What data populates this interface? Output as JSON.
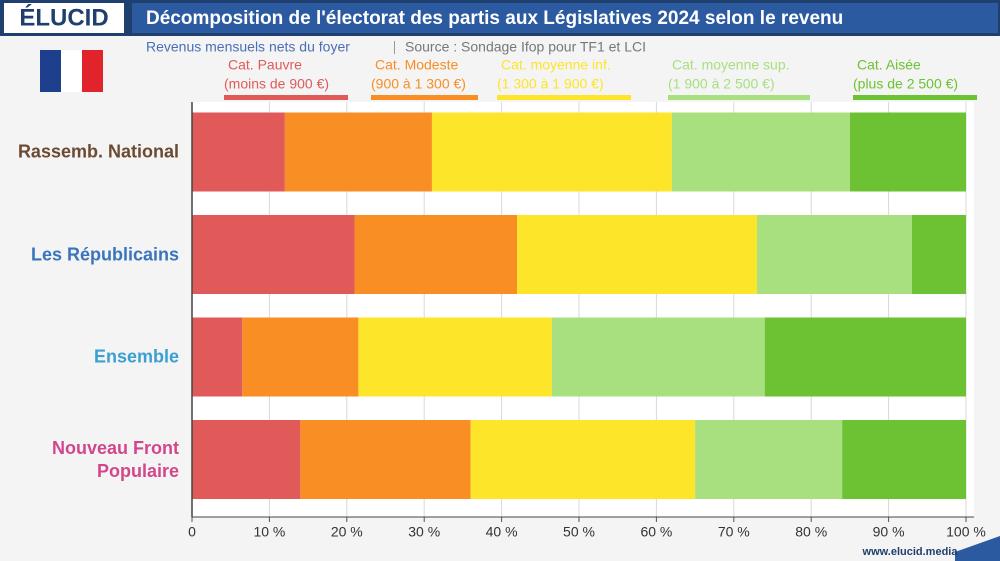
{
  "brand": "ÉLUCID",
  "footer": "www.elucid.media",
  "chart_data": {
    "type": "stacked-bar-horizontal",
    "title": "Décomposition de l'électorat des partis aux Législatives 2024 selon le revenu",
    "subtitle": "Revenus mensuels nets du foyer",
    "source": "Source : Sondage Ifop pour TF1 et LCI",
    "categories": [
      "Rassemb. National",
      "Les Républicains",
      "Ensemble",
      "Nouveau Front Populaire"
    ],
    "category_colors": [
      "#6b4a32",
      "#3a74bd",
      "#3b9fd2",
      "#d2478c"
    ],
    "series": [
      {
        "name": "Cat. Pauvre",
        "description": "(moins de 900 €)",
        "color": "#e05a5a",
        "values": [
          12,
          21,
          6.5,
          14
        ]
      },
      {
        "name": "Cat. Modeste",
        "description": "(900 à 1 300 €)",
        "color": "#f98e24",
        "values": [
          19,
          21,
          15,
          22
        ]
      },
      {
        "name": "Cat. moyenne inf.",
        "description": "(1 300 à 1 900 €)",
        "color": "#fde52a",
        "values": [
          31,
          31,
          25,
          29
        ]
      },
      {
        "name": "Cat. moyenne sup.",
        "description": "(1 900 à 2 500 €)",
        "color": "#a8e07f",
        "values": [
          23,
          20,
          27.5,
          19
        ]
      },
      {
        "name": "Cat. Aisée",
        "description": "(plus de 2 500 €)",
        "color": "#6cc232",
        "values": [
          15,
          7,
          26,
          16
        ]
      }
    ],
    "xlim": [
      0,
      100
    ],
    "xticks": [
      0,
      {
        "value": 10,
        "label": "10 %"
      },
      {
        "value": 20,
        "label": "20 %"
      },
      {
        "value": 30,
        "label": "30 %"
      },
      {
        "value": 40,
        "label": "40 %"
      },
      {
        "value": 50,
        "label": "50 %"
      },
      {
        "value": 60,
        "label": "60 %"
      },
      {
        "value": 70,
        "label": "70 %"
      },
      {
        "value": 80,
        "label": "80 %"
      },
      {
        "value": 90,
        "label": "90 %"
      },
      {
        "value": 100,
        "label": "100 %"
      }
    ],
    "grid": true
  }
}
